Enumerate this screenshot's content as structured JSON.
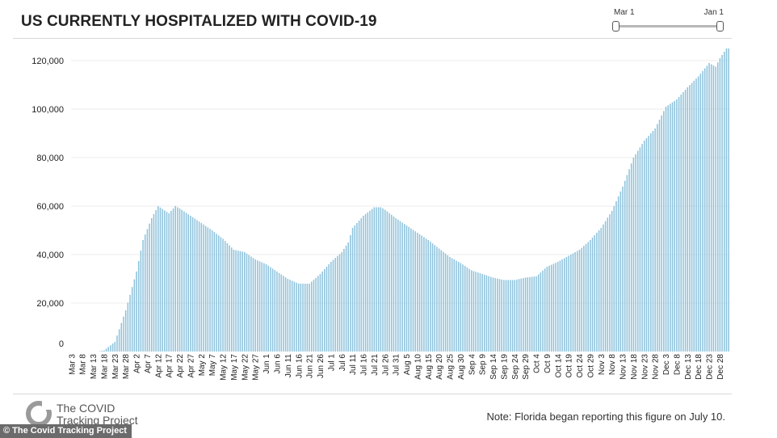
{
  "header": {
    "title": "US CURRENTLY HOSPITALIZED WITH COVID-19"
  },
  "range_slider": {
    "start_label": "Mar 1",
    "end_label": "Jan 1"
  },
  "footer": {
    "logo_line1": "The COVID",
    "logo_line2": "Tracking Project",
    "note": "Note: Florida began reporting this figure on July 10.",
    "credit": "© The Covid Tracking Project"
  },
  "colors": {
    "bar": "#8fc3dc",
    "grid": "#ececec",
    "logo": "#9a9a9a"
  },
  "chart_data": {
    "type": "bar",
    "title": "US CURRENTLY HOSPITALIZED WITH COVID-19",
    "xlabel": "",
    "ylabel": "",
    "ylim": [
      0,
      125000
    ],
    "grid": true,
    "yticks": [
      {
        "value": 0,
        "label": "0"
      },
      {
        "value": 20000,
        "label": "20,000"
      },
      {
        "value": 40000,
        "label": "40,000"
      },
      {
        "value": 60000,
        "label": "60,000"
      },
      {
        "value": 80000,
        "label": "80,000"
      },
      {
        "value": 100000,
        "label": "100,000"
      },
      {
        "value": 120000,
        "label": "120,000"
      }
    ],
    "xticks": [
      "Mar 3",
      "Mar 8",
      "Mar 13",
      "Mar 18",
      "Mar 23",
      "Mar 28",
      "Apr 2",
      "Apr 7",
      "Apr 12",
      "Apr 17",
      "Apr 22",
      "Apr 27",
      "May 2",
      "May 7",
      "May 12",
      "May 17",
      "May 22",
      "May 27",
      "Jun 1",
      "Jun 6",
      "Jun 11",
      "Jun 16",
      "Jun 21",
      "Jun 26",
      "Jul 1",
      "Jul 6",
      "Jul 11",
      "Jul 16",
      "Jul 21",
      "Jul 26",
      "Jul 31",
      "Aug 5",
      "Aug 10",
      "Aug 15",
      "Aug 20",
      "Aug 25",
      "Aug 30",
      "Sep 4",
      "Sep 9",
      "Sep 14",
      "Sep 19",
      "Sep 24",
      "Sep 29",
      "Oct 4",
      "Oct 9",
      "Oct 14",
      "Oct 19",
      "Oct 24",
      "Oct 29",
      "Nov 3",
      "Nov 8",
      "Nov 13",
      "Nov 18",
      "Nov 23",
      "Nov 28",
      "Dec 3",
      "Dec 8",
      "Dec 13",
      "Dec 18",
      "Dec 23",
      "Dec 28"
    ],
    "anchors": [
      {
        "date": "2020-03-03",
        "value": 0
      },
      {
        "date": "2020-03-15",
        "value": 0
      },
      {
        "date": "2020-03-18",
        "value": 500
      },
      {
        "date": "2020-03-23",
        "value": 4000
      },
      {
        "date": "2020-03-28",
        "value": 17000
      },
      {
        "date": "2020-04-02",
        "value": 33000
      },
      {
        "date": "2020-04-05",
        "value": 46000
      },
      {
        "date": "2020-04-09",
        "value": 55000
      },
      {
        "date": "2020-04-12",
        "value": 60000
      },
      {
        "date": "2020-04-17",
        "value": 57000
      },
      {
        "date": "2020-04-20",
        "value": 60000
      },
      {
        "date": "2020-04-22",
        "value": 59000
      },
      {
        "date": "2020-04-27",
        "value": 56000
      },
      {
        "date": "2020-05-02",
        "value": 53000
      },
      {
        "date": "2020-05-07",
        "value": 50000
      },
      {
        "date": "2020-05-12",
        "value": 46500
      },
      {
        "date": "2020-05-17",
        "value": 42000
      },
      {
        "date": "2020-05-22",
        "value": 41000
      },
      {
        "date": "2020-05-27",
        "value": 38000
      },
      {
        "date": "2020-06-01",
        "value": 36000
      },
      {
        "date": "2020-06-06",
        "value": 33000
      },
      {
        "date": "2020-06-11",
        "value": 30000
      },
      {
        "date": "2020-06-16",
        "value": 28000
      },
      {
        "date": "2020-06-21",
        "value": 28000
      },
      {
        "date": "2020-06-26",
        "value": 32000
      },
      {
        "date": "2020-07-01",
        "value": 37000
      },
      {
        "date": "2020-07-06",
        "value": 41000
      },
      {
        "date": "2020-07-09",
        "value": 45000
      },
      {
        "date": "2020-07-11",
        "value": 51000
      },
      {
        "date": "2020-07-16",
        "value": 56000
      },
      {
        "date": "2020-07-21",
        "value": 59500
      },
      {
        "date": "2020-07-24",
        "value": 59500
      },
      {
        "date": "2020-07-26",
        "value": 58500
      },
      {
        "date": "2020-07-31",
        "value": 55000
      },
      {
        "date": "2020-08-05",
        "value": 52000
      },
      {
        "date": "2020-08-10",
        "value": 49000
      },
      {
        "date": "2020-08-15",
        "value": 46000
      },
      {
        "date": "2020-08-20",
        "value": 42500
      },
      {
        "date": "2020-08-25",
        "value": 39000
      },
      {
        "date": "2020-08-30",
        "value": 36500
      },
      {
        "date": "2020-09-04",
        "value": 33500
      },
      {
        "date": "2020-09-09",
        "value": 32000
      },
      {
        "date": "2020-09-14",
        "value": 30500
      },
      {
        "date": "2020-09-19",
        "value": 29500
      },
      {
        "date": "2020-09-24",
        "value": 29500
      },
      {
        "date": "2020-09-29",
        "value": 30500
      },
      {
        "date": "2020-10-04",
        "value": 31000
      },
      {
        "date": "2020-10-09",
        "value": 35000
      },
      {
        "date": "2020-10-14",
        "value": 37000
      },
      {
        "date": "2020-10-19",
        "value": 39500
      },
      {
        "date": "2020-10-24",
        "value": 42000
      },
      {
        "date": "2020-10-29",
        "value": 46000
      },
      {
        "date": "2020-11-03",
        "value": 51000
      },
      {
        "date": "2020-11-08",
        "value": 58000
      },
      {
        "date": "2020-11-13",
        "value": 68000
      },
      {
        "date": "2020-11-18",
        "value": 80000
      },
      {
        "date": "2020-11-23",
        "value": 87000
      },
      {
        "date": "2020-11-28",
        "value": 92000
      },
      {
        "date": "2020-12-03",
        "value": 101000
      },
      {
        "date": "2020-12-08",
        "value": 104000
      },
      {
        "date": "2020-12-13",
        "value": 109000
      },
      {
        "date": "2020-12-18",
        "value": 113500
      },
      {
        "date": "2020-12-23",
        "value": 119000
      },
      {
        "date": "2020-12-26",
        "value": 117500
      },
      {
        "date": "2020-12-28",
        "value": 121000
      },
      {
        "date": "2020-12-31",
        "value": 125000
      },
      {
        "date": "2021-01-01",
        "value": 125000
      }
    ]
  }
}
